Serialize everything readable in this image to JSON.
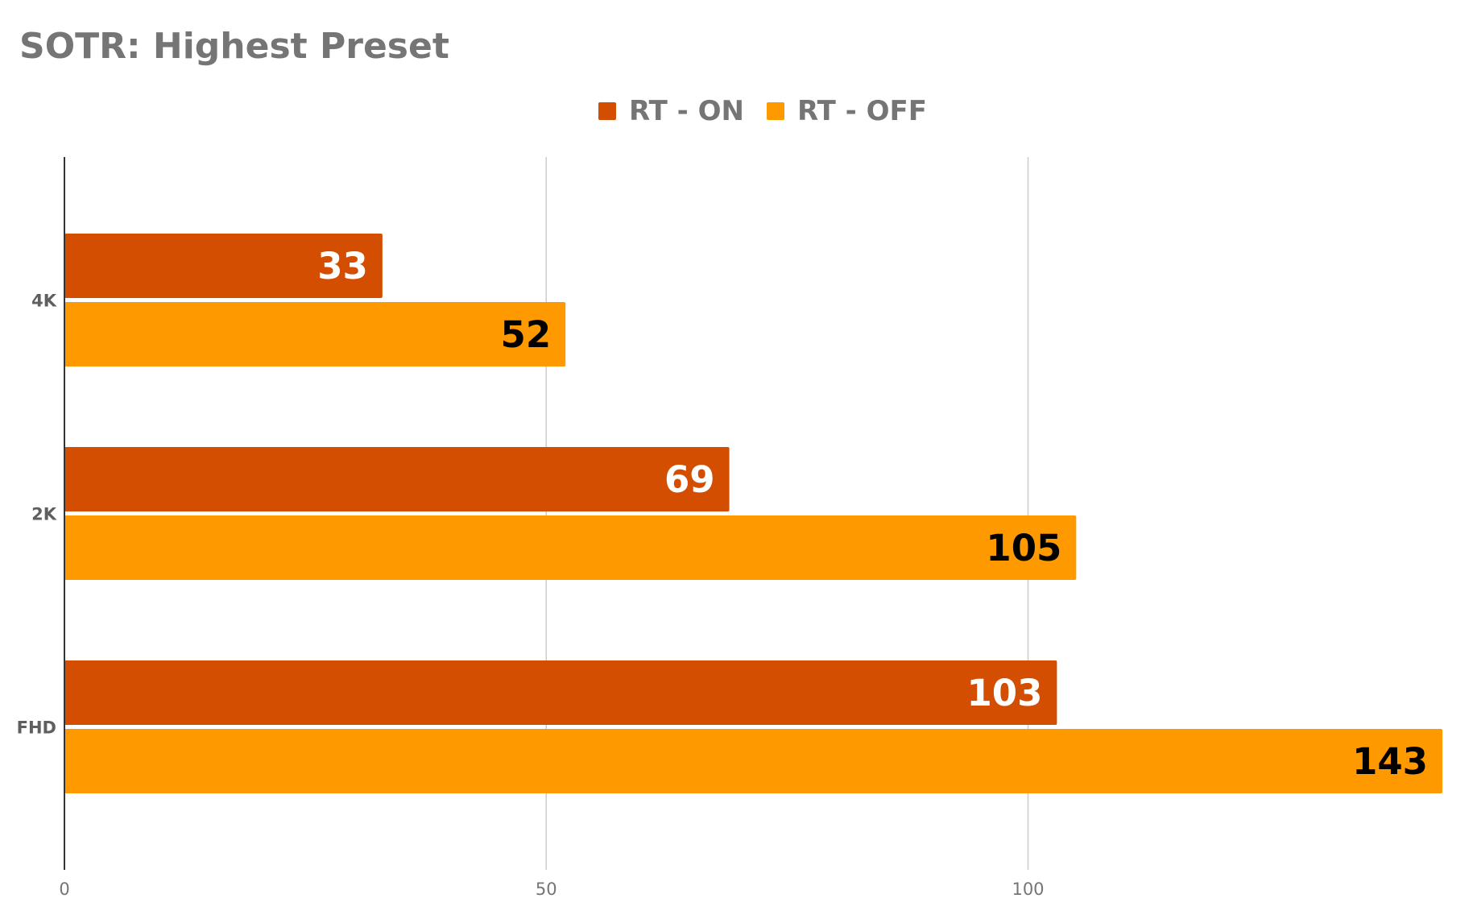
{
  "chart_data": {
    "type": "bar",
    "orientation": "horizontal",
    "title": "SOTR: Highest Preset",
    "categories": [
      "4K",
      "2K",
      "FHD"
    ],
    "series": [
      {
        "name": "RT - ON",
        "values": [
          33,
          69,
          103
        ],
        "color": "#d34e00",
        "label_color": "#ffffff"
      },
      {
        "name": "RT - OFF",
        "values": [
          52,
          105,
          143
        ],
        "color": "#ff9900",
        "label_color": "#000000"
      }
    ],
    "xlim": [
      0,
      143
    ],
    "xticks": [
      0,
      50,
      100
    ],
    "xtick_labels": [
      "0",
      "50",
      "100"
    ],
    "xlabel": "",
    "ylabel": "",
    "grid": "vertical",
    "legend_position": "top-center",
    "data_labels": true,
    "colors": {
      "gridline": "#cccccc",
      "axis": "#333333",
      "title": "#757575"
    }
  }
}
